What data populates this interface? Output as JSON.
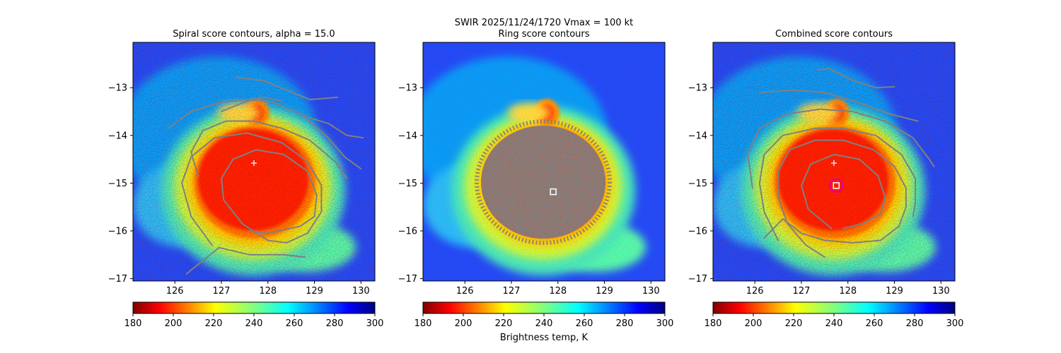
{
  "suptitle": {
    "line1": "SWIR  2025/11/24/1720    Vmax = 100 kt"
  },
  "colors": {
    "contour": "#808080",
    "marker_first_guess": "#ffffff",
    "marker_center": "#ffffff",
    "circle": "#e6008c",
    "colormap": "jet_r"
  },
  "chart_data": [
    {
      "type": "heatmap",
      "title": "Spiral score contours, alpha = 15.0",
      "xlim": [
        125.1,
        130.3
      ],
      "ylim": [
        -17.05,
        -12.05
      ],
      "xticks": [
        126,
        127,
        128,
        129,
        130
      ],
      "yticks": [
        -13,
        -14,
        -15,
        -16,
        -17
      ],
      "xtick_labels": [
        "126",
        "127",
        "128",
        "129",
        "130"
      ],
      "ytick_labels": [
        "−13",
        "−14",
        "−15",
        "−16",
        "−17"
      ],
      "colorbar": {
        "min": 180,
        "max": 300,
        "ticks": [
          180,
          200,
          220,
          240,
          260,
          280,
          300
        ],
        "tick_labels": [
          "180",
          "200",
          "220",
          "240",
          "260",
          "280",
          "300"
        ],
        "label": ""
      },
      "markers": [
        {
          "kind": "plus",
          "x": 127.7,
          "y": -14.58
        }
      ],
      "contours": [
        [
          [
            126.25,
            -16.9
          ],
          [
            126.95,
            -16.35
          ],
          [
            127.6,
            -16.5
          ],
          [
            128.35,
            -16.5
          ],
          [
            128.8,
            -16.55
          ]
        ],
        [
          [
            126.8,
            -16.3
          ],
          [
            126.35,
            -15.7
          ],
          [
            126.15,
            -15.0
          ],
          [
            126.35,
            -14.45
          ],
          [
            126.85,
            -14.05
          ],
          [
            127.55,
            -13.95
          ],
          [
            128.3,
            -14.15
          ],
          [
            128.85,
            -14.55
          ],
          [
            129.15,
            -15.05
          ],
          [
            129.15,
            -15.6
          ],
          [
            128.85,
            -16.05
          ],
          [
            128.4,
            -16.25
          ],
          [
            128.0,
            -16.2
          ]
        ],
        [
          [
            128.0,
            -16.2
          ],
          [
            127.45,
            -15.85
          ],
          [
            127.05,
            -15.35
          ],
          [
            127.0,
            -14.9
          ],
          [
            127.25,
            -14.5
          ],
          [
            127.75,
            -14.3
          ],
          [
            128.35,
            -14.4
          ],
          [
            128.85,
            -14.75
          ],
          [
            129.05,
            -15.25
          ],
          [
            129.0,
            -15.7
          ],
          [
            128.7,
            -15.9
          ],
          [
            128.0,
            -16.05
          ],
          [
            127.6,
            -16.0
          ]
        ],
        [
          [
            125.85,
            -13.85
          ],
          [
            126.35,
            -13.5
          ],
          [
            127.0,
            -13.3
          ],
          [
            127.6,
            -13.25
          ],
          [
            128.1,
            -13.3
          ],
          [
            128.7,
            -13.55
          ],
          [
            129.25,
            -14.0
          ],
          [
            129.65,
            -14.45
          ],
          [
            130.0,
            -14.7
          ]
        ],
        [
          [
            126.5,
            -14.85
          ],
          [
            126.35,
            -14.35
          ],
          [
            126.6,
            -13.9
          ],
          [
            127.1,
            -13.7
          ],
          [
            127.7,
            -13.7
          ],
          [
            128.3,
            -13.85
          ],
          [
            128.9,
            -14.1
          ],
          [
            129.45,
            -14.55
          ],
          [
            129.7,
            -14.9
          ]
        ],
        [
          [
            127.3,
            -12.78
          ],
          [
            127.9,
            -12.85
          ],
          [
            128.4,
            -13.05
          ],
          [
            128.9,
            -13.25
          ],
          [
            129.5,
            -13.2
          ]
        ],
        [
          [
            127.0,
            -13.5
          ],
          [
            127.5,
            -13.3
          ],
          [
            127.9,
            -13.2
          ],
          [
            128.3,
            -13.28
          ]
        ],
        [
          [
            128.8,
            -13.6
          ],
          [
            129.3,
            -13.75
          ],
          [
            129.7,
            -14.0
          ],
          [
            130.05,
            -14.05
          ]
        ]
      ]
    },
    {
      "type": "heatmap",
      "title": "Ring score contours",
      "xlim": [
        125.1,
        130.3
      ],
      "ylim": [
        -17.05,
        -12.05
      ],
      "xticks": [
        126,
        127,
        128,
        129,
        130
      ],
      "yticks": [
        -13,
        -14,
        -15,
        -16,
        -17
      ],
      "xtick_labels": [
        "126",
        "127",
        "128",
        "129",
        "130"
      ],
      "ytick_labels": [
        "−13",
        "−14",
        "−15",
        "−16",
        "−17"
      ],
      "colorbar": {
        "min": 180,
        "max": 300,
        "ticks": [
          180,
          200,
          220,
          240,
          260,
          280,
          300
        ],
        "tick_labels": [
          "180",
          "200",
          "220",
          "240",
          "260",
          "280",
          "300"
        ],
        "label": "Brightness temp, K"
      },
      "markers": [
        {
          "kind": "square",
          "x": 127.9,
          "y": -15.18
        }
      ],
      "contours": []
    },
    {
      "type": "heatmap",
      "title": "Combined score contours",
      "xlim": [
        125.1,
        130.3
      ],
      "ylim": [
        -17.05,
        -12.05
      ],
      "xticks": [
        126,
        127,
        128,
        129,
        130
      ],
      "yticks": [
        -13,
        -14,
        -15,
        -16,
        -17
      ],
      "xtick_labels": [
        "126",
        "127",
        "128",
        "129",
        "130"
      ],
      "ytick_labels": [
        "−13",
        "−14",
        "−15",
        "−16",
        "−17"
      ],
      "colorbar": {
        "min": 180,
        "max": 300,
        "ticks": [
          180,
          200,
          220,
          240,
          260,
          280,
          300
        ],
        "tick_labels": [
          "180",
          "200",
          "220",
          "240",
          "260",
          "280",
          "300"
        ],
        "label": ""
      },
      "markers": [
        {
          "kind": "plus",
          "x": 127.7,
          "y": -14.58
        },
        {
          "kind": "circle",
          "x": 127.75,
          "y": -15.05
        },
        {
          "kind": "square",
          "x": 127.75,
          "y": -15.05
        }
      ],
      "contours": [
        [
          [
            126.1,
            -13.1
          ],
          [
            126.8,
            -13.05
          ],
          [
            127.5,
            -13.1
          ],
          [
            128.2,
            -13.3
          ],
          [
            128.9,
            -13.55
          ],
          [
            129.5,
            -13.7
          ]
        ],
        [
          [
            126.5,
            -16.2
          ],
          [
            126.2,
            -15.6
          ],
          [
            126.1,
            -15.0
          ],
          [
            126.2,
            -14.4
          ],
          [
            126.6,
            -14.0
          ],
          [
            127.3,
            -13.85
          ],
          [
            127.9,
            -13.85
          ],
          [
            128.6,
            -14.0
          ],
          [
            129.15,
            -14.4
          ],
          [
            129.45,
            -14.9
          ],
          [
            129.45,
            -15.4
          ],
          [
            129.4,
            -15.7
          ]
        ],
        [
          [
            126.2,
            -16.15
          ],
          [
            126.6,
            -15.75
          ],
          [
            127.0,
            -16.05
          ],
          [
            127.5,
            -16.2
          ],
          [
            128.1,
            -16.25
          ],
          [
            128.7,
            -16.2
          ],
          [
            129.1,
            -15.9
          ],
          [
            129.25,
            -15.5
          ],
          [
            129.25,
            -15.1
          ],
          [
            129.0,
            -14.65
          ],
          [
            128.55,
            -14.3
          ],
          [
            127.9,
            -14.1
          ],
          [
            127.3,
            -14.1
          ],
          [
            126.75,
            -14.3
          ],
          [
            126.5,
            -14.75
          ],
          [
            126.5,
            -15.3
          ],
          [
            126.7,
            -15.85
          ],
          [
            127.1,
            -16.3
          ],
          [
            127.5,
            -16.55
          ]
        ],
        [
          [
            127.65,
            -15.95
          ],
          [
            127.15,
            -15.55
          ],
          [
            127.0,
            -15.05
          ],
          [
            127.2,
            -14.6
          ],
          [
            127.7,
            -14.4
          ],
          [
            128.25,
            -14.5
          ],
          [
            128.65,
            -14.85
          ],
          [
            128.8,
            -15.3
          ],
          [
            128.7,
            -15.65
          ],
          [
            128.3,
            -15.85
          ],
          [
            127.9,
            -15.95
          ]
        ],
        [
          [
            125.95,
            -15.1
          ],
          [
            125.85,
            -14.4
          ],
          [
            126.1,
            -13.85
          ],
          [
            126.7,
            -13.55
          ],
          [
            127.4,
            -13.45
          ],
          [
            128.1,
            -13.5
          ],
          [
            128.8,
            -13.7
          ],
          [
            129.4,
            -14.05
          ],
          [
            129.75,
            -14.5
          ],
          [
            129.85,
            -14.65
          ]
        ],
        [
          [
            127.35,
            -12.63
          ],
          [
            127.6,
            -12.6
          ],
          [
            128.1,
            -12.85
          ],
          [
            128.6,
            -13.0
          ],
          [
            129.0,
            -12.98
          ]
        ]
      ]
    }
  ]
}
